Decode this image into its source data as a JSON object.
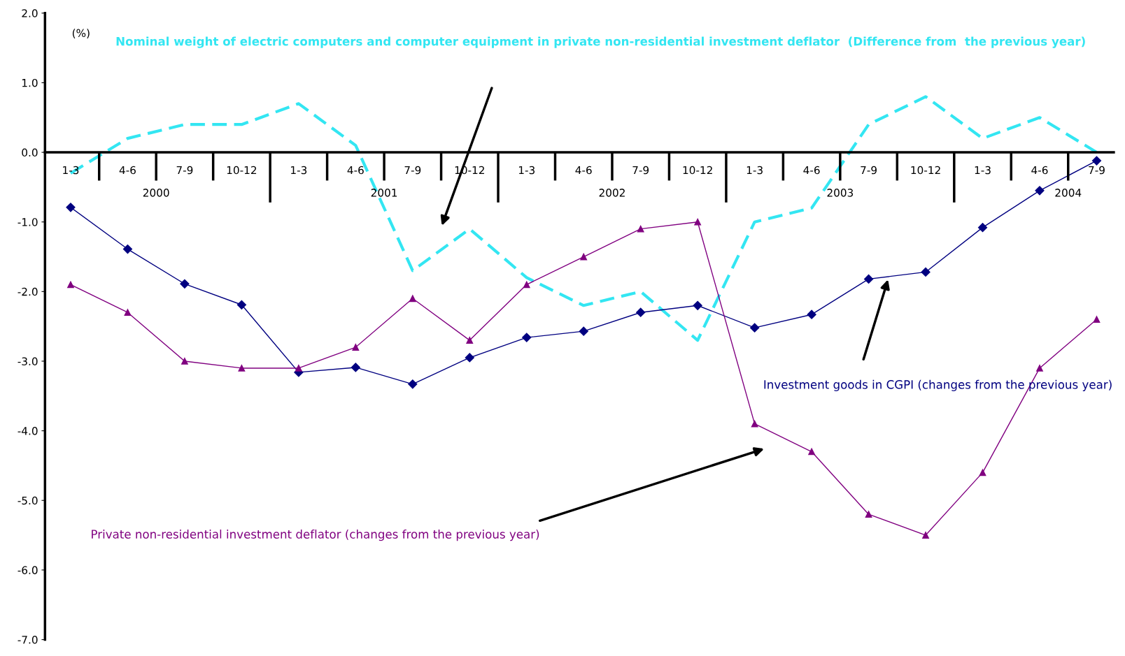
{
  "chart_data": {
    "type": "line",
    "categories": [
      "1-3",
      "4-6",
      "7-9",
      "10-12",
      "1-3",
      "4-6",
      "7-9",
      "10-12",
      "1-3",
      "4-6",
      "7-9",
      "10-12",
      "1-3",
      "4-6",
      "7-9",
      "10-12",
      "1-3",
      "4-6",
      "7-9"
    ],
    "ylabel": "(%)",
    "ylim": [
      -7,
      2
    ],
    "yticks": [
      {
        "value": 2,
        "label": "2.0"
      },
      {
        "value": 1,
        "label": "1.0"
      },
      {
        "value": 0,
        "label": "0.0"
      },
      {
        "value": -1,
        "label": "-1.0"
      },
      {
        "value": -2,
        "label": "-2.0"
      },
      {
        "value": -3,
        "label": "-3.0"
      },
      {
        "value": -4,
        "label": "-4.0"
      },
      {
        "value": -5,
        "label": "-5.0"
      },
      {
        "value": -6,
        "label": "-6.0"
      },
      {
        "value": -7,
        "label": "-7.0"
      }
    ],
    "grid": false,
    "legend": false,
    "series": [
      {
        "name": "Nominal weight of electric computers and computer equipment in private non-residential investment deflator  (Difference from  the previous year)",
        "color": "#33e6f2",
        "line_style": "dashed",
        "marker": "none",
        "values": [
          -0.3,
          0.2,
          0.4,
          0.4,
          0.7,
          0.1,
          -1.7,
          -1.1,
          -1.8,
          -2.2,
          -2.0,
          -2.7,
          -1.0,
          -0.8,
          0.4,
          0.8,
          0.2,
          0.5,
          0.0
        ]
      },
      {
        "name": "Investment goods in CGPI (changes from the previous year)",
        "color": "#000080",
        "line_style": "solid",
        "marker": "diamond",
        "values": [
          -0.79,
          -1.39,
          -1.89,
          -2.19,
          -3.16,
          -3.09,
          -3.33,
          -2.95,
          -2.66,
          -2.57,
          -2.3,
          -2.2,
          -2.52,
          -2.33,
          -1.82,
          -1.72,
          -1.08,
          -0.55,
          -0.12
        ]
      },
      {
        "name": "Private non-residential investment deflator (changes from the previous year)",
        "color": "#800080",
        "line_style": "solid",
        "marker": "triangle",
        "values": [
          -1.9,
          -2.3,
          -3.0,
          -3.1,
          -3.1,
          -2.8,
          -2.1,
          -2.7,
          -1.9,
          -1.5,
          -1.1,
          -1.0,
          -3.9,
          -4.3,
          -5.2,
          -5.5,
          -4.6,
          -3.1,
          -2.4
        ]
      }
    ],
    "annotations": [
      "2000",
      "2001",
      "2002",
      "2003",
      "2004"
    ]
  }
}
